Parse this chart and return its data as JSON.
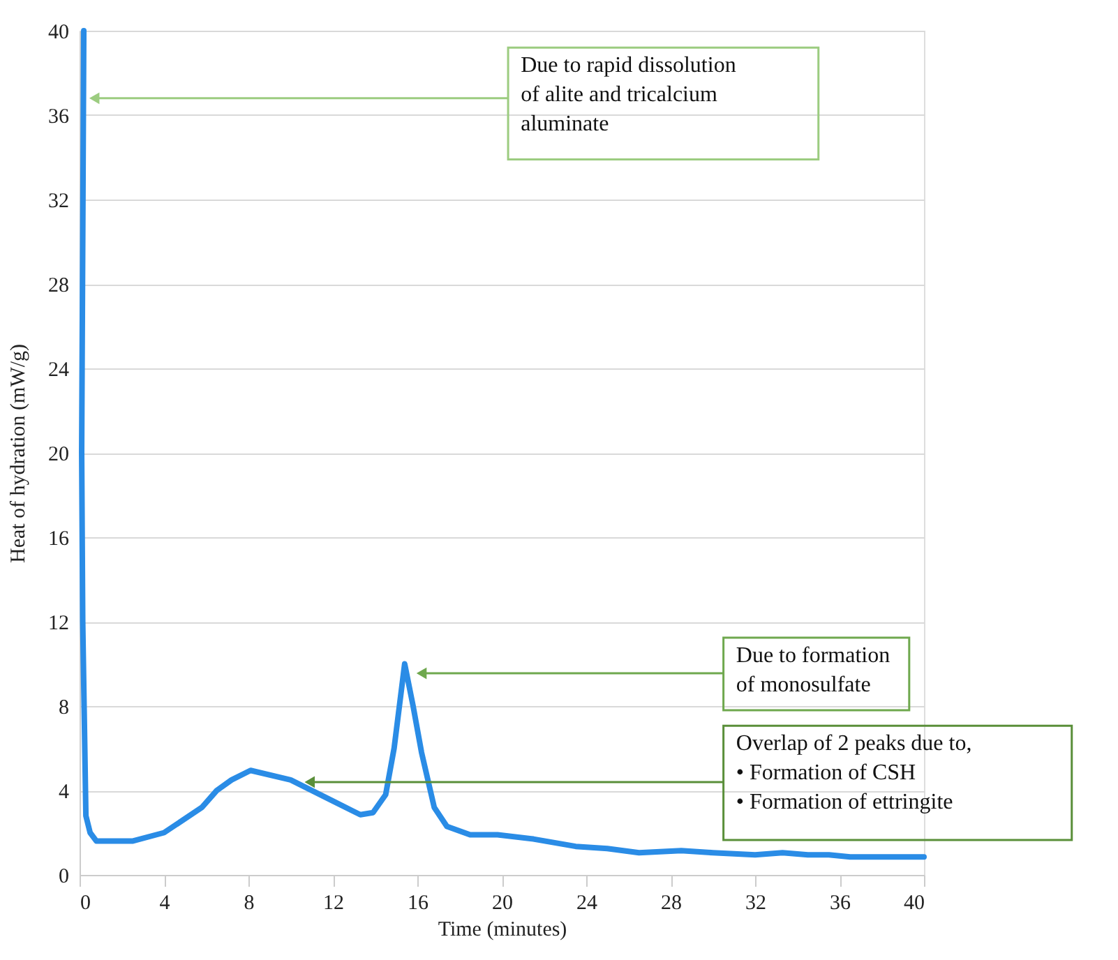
{
  "chart_data": {
    "type": "line",
    "xlabel": "Time (minutes)",
    "ylabel": "Heat of hydration (mW/g)",
    "x": [
      0.2,
      0.1,
      0.15,
      0.3,
      0.5,
      0.8,
      2.5,
      4,
      5.8,
      6.5,
      7.2,
      8.1,
      10,
      12,
      13.3,
      13.9,
      14.5,
      14.9,
      15.4,
      15.8,
      16.2,
      16.8,
      17.4,
      18.5,
      19.8,
      21.5,
      23.5,
      25,
      26.5,
      28.5,
      30,
      32,
      33.3,
      34.5,
      35.5,
      36.5,
      38,
      40
    ],
    "series": [
      {
        "color": "#2a8ce6",
        "values": [
          40,
          20,
          12,
          2.8,
          2,
          1.6,
          1.6,
          2,
          3.2,
          4,
          4.5,
          4.95,
          4.5,
          3.5,
          2.85,
          2.95,
          3.8,
          6,
          10,
          8,
          5.8,
          3.2,
          2.3,
          1.9,
          1.9,
          1.7,
          1.35,
          1.25,
          1.05,
          1.15,
          1.05,
          0.95,
          1.05,
          0.95,
          0.95,
          0.85,
          0.85,
          0.85
        ]
      }
    ],
    "xlim": [
      0,
      40
    ],
    "xticks": [
      0,
      4,
      8,
      12,
      16,
      20,
      24,
      28,
      32,
      36,
      40
    ],
    "ylim": [
      0,
      40
    ],
    "yticks": [
      0,
      4,
      8,
      12,
      16,
      20,
      24,
      28,
      32,
      36,
      40
    ],
    "grid": "y",
    "marker": "none",
    "line_style": "solid",
    "annotations": [
      {
        "text": "Due to rapid dissolution\nof alite and tricalcium\naluminate",
        "x": 0.7,
        "y": 36.8
      },
      {
        "text": "Due to formation\nof monosulfate",
        "x": 16.2,
        "y": 9.55
      },
      {
        "text": "Overlap of 2 peaks due to,\n•     Formation of CSH\n•     Formation of ettringite",
        "x": 10.9,
        "y": 4.4
      }
    ]
  }
}
